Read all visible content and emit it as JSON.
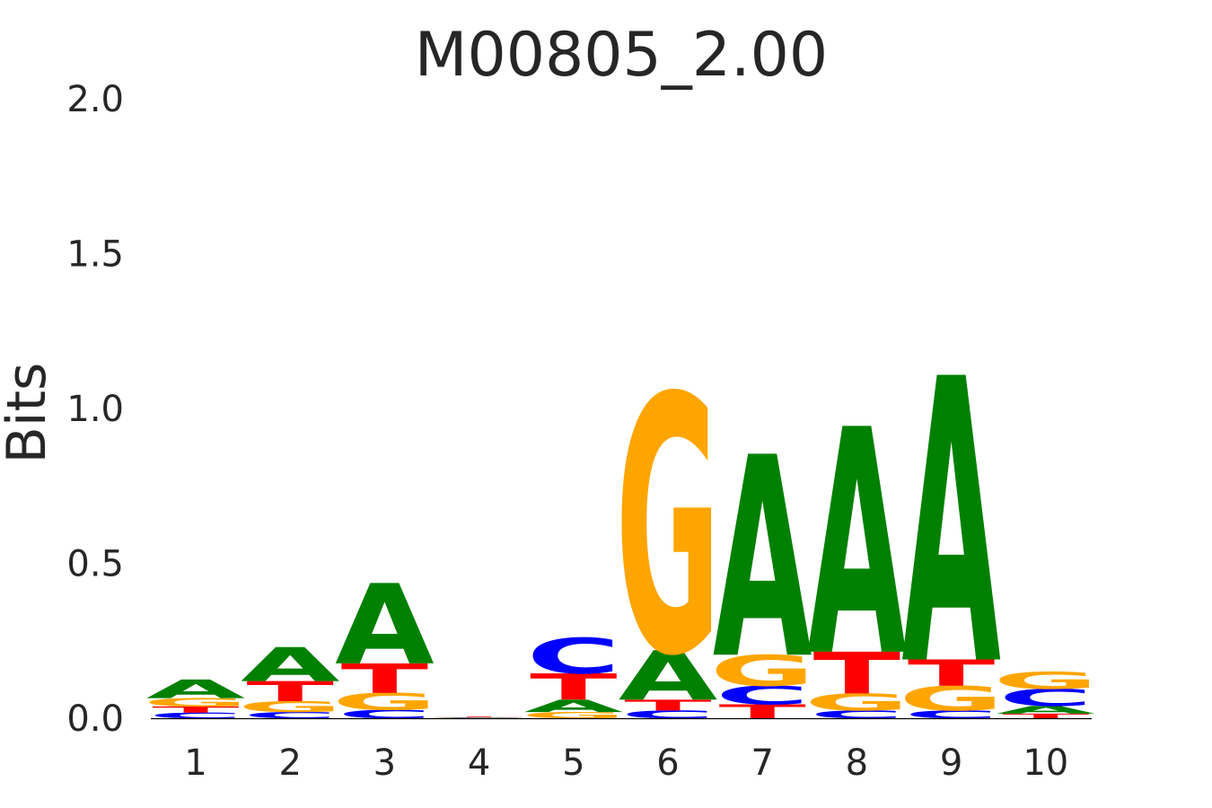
{
  "chart_data": {
    "type": "sequence-logo",
    "title": "M00805_2.00",
    "ylabel": "Bits",
    "xlabel": "",
    "ylim": [
      0,
      2.0
    ],
    "yticks": [
      "0.0",
      "0.5",
      "1.0",
      "1.5",
      "2.0"
    ],
    "grid": false,
    "legend": "none",
    "colors": {
      "A": "#008000",
      "C": "#0000ff",
      "G": "#ffa500",
      "T": "#ff0000"
    },
    "positions": [
      {
        "label": "1",
        "stack": [
          {
            "base": "C",
            "bits": 0.018
          },
          {
            "base": "T",
            "bits": 0.02
          },
          {
            "base": "G",
            "bits": 0.027
          },
          {
            "base": "A",
            "bits": 0.06
          }
        ]
      },
      {
        "label": "2",
        "stack": [
          {
            "base": "C",
            "bits": 0.02
          },
          {
            "base": "G",
            "bits": 0.035
          },
          {
            "base": "T",
            "bits": 0.065
          },
          {
            "base": "A",
            "bits": 0.11
          }
        ]
      },
      {
        "label": "3",
        "stack": [
          {
            "base": "C",
            "bits": 0.027
          },
          {
            "base": "G",
            "bits": 0.055
          },
          {
            "base": "T",
            "bits": 0.095
          },
          {
            "base": "A",
            "bits": 0.26
          }
        ]
      },
      {
        "label": "4",
        "stack": [
          {
            "base": "C",
            "bits": 0.001
          },
          {
            "base": "G",
            "bits": 0.001
          },
          {
            "base": "A",
            "bits": 0.001
          },
          {
            "base": "T",
            "bits": 0.002
          }
        ]
      },
      {
        "label": "5",
        "stack": [
          {
            "base": "G",
            "bits": 0.02
          },
          {
            "base": "A",
            "bits": 0.04
          },
          {
            "base": "T",
            "bits": 0.085
          },
          {
            "base": "C",
            "bits": 0.115
          }
        ]
      },
      {
        "label": "6",
        "stack": [
          {
            "base": "C",
            "bits": 0.025
          },
          {
            "base": "T",
            "bits": 0.035
          },
          {
            "base": "A",
            "bits": 0.16
          },
          {
            "base": "G",
            "bits": 0.83
          }
        ]
      },
      {
        "label": "7",
        "stack": [
          {
            "base": "T",
            "bits": 0.045
          },
          {
            "base": "C",
            "bits": 0.06
          },
          {
            "base": "G",
            "bits": 0.1
          },
          {
            "base": "A",
            "bits": 0.65
          }
        ]
      },
      {
        "label": "8",
        "stack": [
          {
            "base": "C",
            "bits": 0.025
          },
          {
            "base": "G",
            "bits": 0.055
          },
          {
            "base": "T",
            "bits": 0.135
          },
          {
            "base": "A",
            "bits": 0.73
          }
        ]
      },
      {
        "label": "9",
        "stack": [
          {
            "base": "C",
            "bits": 0.025
          },
          {
            "base": "G",
            "bits": 0.08
          },
          {
            "base": "T",
            "bits": 0.085
          },
          {
            "base": "A",
            "bits": 0.92
          }
        ]
      },
      {
        "label": "10",
        "stack": [
          {
            "base": "T",
            "bits": 0.015
          },
          {
            "base": "A",
            "bits": 0.025
          },
          {
            "base": "C",
            "bits": 0.055
          },
          {
            "base": "G",
            "bits": 0.055
          }
        ]
      }
    ]
  }
}
